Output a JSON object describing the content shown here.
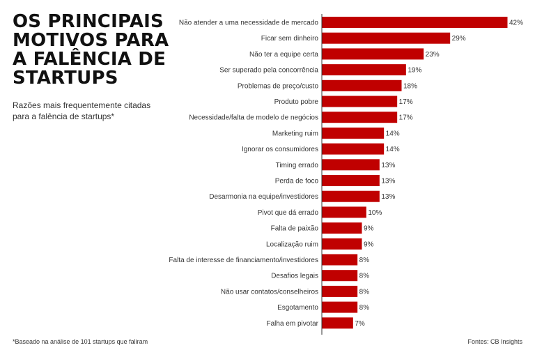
{
  "header": {
    "title": "OS PRINCIPAIS MOTIVOS PARA A FALÊNCIA DE STARTUPS",
    "subtitle": "Razões mais frequentemente citadas para a falência de startups*"
  },
  "footer": {
    "footnote": "*Baseado na análise de 101 startups que faliram",
    "source": "Fontes: CB Insights"
  },
  "colors": {
    "bar": "#c00000",
    "axis": "#333333"
  },
  "chart_data": {
    "type": "bar",
    "orientation": "horizontal",
    "categories": [
      "Não atender a uma necessidade de mercado",
      "Ficar sem dinheiro",
      "Não ter a equipe certa",
      "Ser superado pela concorrência",
      "Problemas de preço/custo",
      "Produto pobre",
      "Necessidade/falta de modelo de negócios",
      "Marketing ruim",
      "Ignorar os consumidores",
      "Timing errado",
      "Perda de foco",
      "Desarmonia na equipe/investidores",
      "Pivot que dá errado",
      "Falta de paixão",
      "Localização ruim",
      "Falta de interesse de financiamento/investidores",
      "Desafios legais",
      "Não usar contatos/conselheiros",
      "Esgotamento",
      "Falha em pivotar"
    ],
    "values": [
      42,
      29,
      23,
      19,
      18,
      17,
      17,
      14,
      14,
      13,
      13,
      13,
      10,
      9,
      9,
      8,
      8,
      8,
      8,
      7
    ],
    "value_labels": [
      "42%",
      "29%",
      "23%",
      "19%",
      "18%",
      "17%",
      "17%",
      "14%",
      "14%",
      "13%",
      "13%",
      "13%",
      "10%",
      "9%",
      "9%",
      "8%",
      "8%",
      "8%",
      "8%",
      "7%"
    ],
    "title": "OS PRINCIPAIS MOTIVOS PARA A FALÊNCIA DE STARTUPS",
    "subtitle": "Razões mais frequentemente citadas para a falência de startups*",
    "xlabel": "",
    "ylabel": "",
    "xlim": [
      0,
      42
    ],
    "grid": false,
    "legend": "none"
  }
}
